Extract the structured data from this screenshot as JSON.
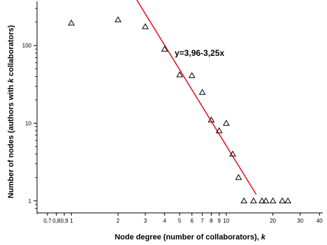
{
  "chart_data": {
    "type": "scatter",
    "title": "",
    "xlabel": "Node degree (number of collaborators), k",
    "xlabel_main": "Node degree (number of collaborators), ",
    "xlabel_var": "k",
    "ylabel": "Number of nodes (authors with k collaborators)",
    "ylabel_pre": "Number of nodes (authors with ",
    "ylabel_var": "k",
    "ylabel_post": " collaborators)",
    "x_scale": "log",
    "y_scale": "log",
    "xlim": [
      0.6,
      42
    ],
    "ylim": [
      0.7,
      370
    ],
    "x_ticks": [
      {
        "value": 0.7,
        "label": "0,7"
      },
      {
        "value": 0.8,
        "label": "0,8"
      },
      {
        "value": 0.9,
        "label": "0,9"
      },
      {
        "value": 1,
        "label": "1"
      },
      {
        "value": 2,
        "label": "2"
      },
      {
        "value": 3,
        "label": "3"
      },
      {
        "value": 4,
        "label": "4"
      },
      {
        "value": 5,
        "label": "5"
      },
      {
        "value": 6,
        "label": "6"
      },
      {
        "value": 7,
        "label": "7"
      },
      {
        "value": 8,
        "label": "8"
      },
      {
        "value": 9,
        "label": "9"
      },
      {
        "value": 10,
        "label": "10"
      },
      {
        "value": 20,
        "label": "20"
      },
      {
        "value": 30,
        "label": "30"
      },
      {
        "value": 40,
        "label": "40"
      }
    ],
    "y_ticks": [
      {
        "value": 1,
        "label": "1"
      },
      {
        "value": 10,
        "label": "10"
      },
      {
        "value": 100,
        "label": "100"
      }
    ],
    "series": [
      {
        "marker": "open-triangle",
        "points": [
          {
            "x": 1,
            "y": 195
          },
          {
            "x": 2,
            "y": 215
          },
          {
            "x": 3,
            "y": 175
          },
          {
            "x": 4,
            "y": 90
          },
          {
            "x": 5,
            "y": 42
          },
          {
            "x": 6,
            "y": 41
          },
          {
            "x": 7,
            "y": 25
          },
          {
            "x": 8,
            "y": 11
          },
          {
            "x": 9,
            "y": 8
          },
          {
            "x": 10,
            "y": 10
          },
          {
            "x": 11,
            "y": 4
          },
          {
            "x": 12,
            "y": 2
          },
          {
            "x": 13,
            "y": 1
          },
          {
            "x": 15,
            "y": 1
          },
          {
            "x": 17,
            "y": 1
          },
          {
            "x": 18,
            "y": 1
          },
          {
            "x": 20,
            "y": 1
          },
          {
            "x": 23,
            "y": 1
          },
          {
            "x": 25,
            "y": 1
          }
        ]
      }
    ],
    "fit_line": {
      "equation": "y=3,96-3,25x",
      "intercept": 3.96,
      "slope": -3.25,
      "x_range": [
        2.58,
        15.6
      ],
      "color": "#e0101a"
    },
    "grid": false
  }
}
